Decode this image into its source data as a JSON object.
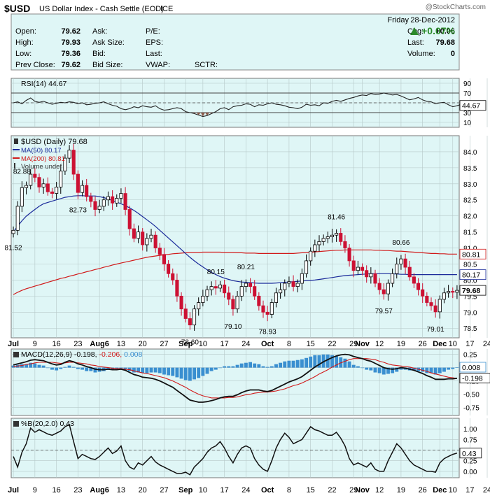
{
  "header": {
    "symbol": "$USD",
    "name": "US Dollar Index - Cash Settle (EOD)",
    "exchange": "ICE",
    "watermark": "@StockCharts.com",
    "date_day": "Friday",
    "date": "28-Dec-2012",
    "change_pct": "+0.07%",
    "rows": [
      {
        "l1": "Open:",
        "v1": "79.62",
        "l2": "Ask:",
        "l3": "P/E:",
        "r_label": "Chg:",
        "r_value": "+0.06"
      },
      {
        "l1": "High:",
        "v1": "79.93",
        "l2": "Ask Size:",
        "l3": "EPS:",
        "r_label": "Last:",
        "r_value": "79.68"
      },
      {
        "l1": "Low:",
        "v1": "79.36",
        "l2": "Bid:",
        "l3": "Last:",
        "r_label": "Volume:",
        "r_value": "0"
      },
      {
        "l1": "Prev Close:",
        "v1": "79.62",
        "l2": "Bid Size:",
        "l3": "VWAP:",
        "l4": "SCTR:"
      }
    ]
  },
  "chart_data": [
    {
      "type": "line",
      "name": "rsi",
      "title": "RSI(14) 44.67",
      "ylim": [
        0,
        100
      ],
      "yticks": [
        10,
        30,
        50,
        70,
        90
      ],
      "reference_lines": [
        30,
        70
      ],
      "last_value": "44.67",
      "values": [
        50,
        52,
        48,
        55,
        60,
        53,
        51,
        53,
        50,
        47,
        49,
        51,
        50,
        52,
        51,
        48,
        50,
        46,
        47,
        49,
        50,
        52,
        48,
        45,
        43,
        38,
        36,
        38,
        42,
        40,
        44,
        42,
        41,
        44,
        38,
        35,
        36,
        38,
        40,
        38,
        32,
        30,
        28,
        25,
        22,
        24,
        28,
        32,
        38,
        40,
        36,
        42,
        44,
        45,
        48,
        47,
        42,
        46,
        45,
        48,
        50,
        47,
        46,
        44,
        41,
        40,
        38,
        41,
        47,
        45,
        46,
        44,
        50,
        49,
        53,
        55,
        53,
        56,
        59,
        61,
        64,
        66,
        65,
        69,
        67,
        68,
        70,
        68,
        66,
        67,
        64,
        60,
        56,
        58,
        61,
        56,
        53,
        52,
        48,
        50,
        51,
        46,
        42,
        44,
        47,
        46,
        44,
        42,
        44,
        45
      ]
    },
    {
      "type": "candlestick",
      "name": "price",
      "title": "$USD (Daily) 79.68",
      "ylim": [
        78.2,
        84.5
      ],
      "yticks": [
        78.5,
        79.0,
        79.5,
        80.0,
        80.5,
        81.0,
        81.5,
        82.0,
        82.5,
        83.0,
        83.5,
        84.0
      ],
      "legend": [
        "$USD (Daily) 79.68",
        "MA(50) 80.17",
        "MA(200) 80.81",
        "Volume undef"
      ],
      "ma50_last": "80.17",
      "ma200_last": "80.81",
      "last_value": "79.68",
      "close": [
        81.55,
        82.3,
        82.88,
        82.95,
        83.3,
        83.2,
        82.9,
        83.0,
        82.75,
        82.7,
        82.9,
        83.4,
        83.8,
        84.05,
        83.3,
        82.73,
        82.95,
        82.6,
        82.45,
        82.2,
        82.3,
        82.5,
        82.6,
        82.4,
        82.55,
        82.7,
        82.2,
        81.6,
        81.3,
        81.5,
        81.1,
        81.3,
        81.4,
        81.0,
        80.8,
        80.5,
        80.2,
        80.0,
        79.5,
        79.1,
        78.8,
        78.6,
        79.1,
        79.3,
        79.5,
        79.7,
        79.8,
        79.75,
        79.85,
        79.6,
        79.4,
        79.1,
        79.5,
        79.8,
        79.9,
        79.8,
        79.5,
        79.2,
        79.0,
        78.93,
        79.3,
        79.6,
        79.7,
        79.9,
        79.95,
        79.8,
        79.9,
        80.2,
        80.6,
        80.9,
        81.1,
        81.2,
        81.3,
        81.35,
        81.4,
        81.46,
        81.2,
        81.0,
        80.6,
        80.3,
        80.4,
        80.3,
        80.1,
        80.2,
        79.9,
        79.7,
        79.57,
        79.9,
        80.2,
        80.5,
        80.66,
        80.4,
        80.1,
        79.9,
        79.7,
        79.5,
        79.3,
        79.2,
        79.01,
        79.4,
        79.6,
        79.65,
        79.62,
        79.68
      ],
      "ma50": [
        81.5,
        81.68,
        81.85,
        81.99,
        82.1,
        82.2,
        82.3,
        82.38,
        82.42,
        82.46,
        82.5,
        82.54,
        82.58,
        82.6,
        82.62,
        82.63,
        82.63,
        82.62,
        82.62,
        82.62,
        82.6,
        82.57,
        82.53,
        82.48,
        82.43,
        82.38,
        82.32,
        82.25,
        82.17,
        82.08,
        81.98,
        81.88,
        81.78,
        81.67,
        81.55,
        81.43,
        81.31,
        81.19,
        81.07,
        80.95,
        80.83,
        80.71,
        80.6,
        80.5,
        80.41,
        80.32,
        80.24,
        80.17,
        80.11,
        80.06,
        80.02,
        79.98,
        79.96,
        79.94,
        79.93,
        79.92,
        79.91,
        79.9,
        79.9,
        79.9,
        79.9,
        79.91,
        79.92,
        79.93,
        79.94,
        79.95,
        79.96,
        79.97,
        79.98,
        79.99,
        80.0,
        80.02,
        80.04,
        80.06,
        80.08,
        80.1,
        80.12,
        80.14,
        80.15,
        80.16,
        80.17,
        80.18,
        80.19,
        80.2,
        80.2,
        80.2,
        80.2,
        80.2,
        80.19,
        80.19,
        80.18,
        80.18,
        80.17,
        80.17,
        80.17,
        80.17,
        80.17,
        80.17,
        80.17,
        80.17,
        80.17,
        80.17,
        80.17,
        80.17
      ],
      "ma200": [
        79.55,
        79.62,
        79.68,
        79.73,
        79.77,
        79.81,
        79.85,
        79.89,
        79.93,
        79.97,
        80.01,
        80.05,
        80.08,
        80.12,
        80.15,
        80.19,
        80.22,
        80.26,
        80.29,
        80.33,
        80.36,
        80.4,
        80.43,
        80.47,
        80.5,
        80.53,
        80.56,
        80.59,
        80.62,
        80.65,
        80.68,
        80.71,
        80.73,
        80.75,
        80.77,
        80.79,
        80.8,
        80.82,
        80.83,
        80.84,
        80.85,
        80.86,
        80.86,
        80.86,
        80.87,
        80.87,
        80.87,
        80.87,
        80.87,
        80.86,
        80.86,
        80.86,
        80.85,
        80.85,
        80.84,
        80.84,
        80.84,
        80.83,
        80.83,
        80.83,
        80.83,
        80.83,
        80.83,
        80.83,
        80.83,
        80.83,
        80.84,
        80.85,
        80.86,
        80.87,
        80.88,
        80.89,
        80.9,
        80.91,
        80.92,
        80.93,
        80.93,
        80.94,
        80.94,
        80.94,
        80.94,
        80.94,
        80.94,
        80.94,
        80.93,
        80.93,
        80.92,
        80.92,
        80.91,
        80.9,
        80.9,
        80.89,
        80.88,
        80.87,
        80.86,
        80.85,
        80.84,
        80.83,
        80.83,
        80.82,
        80.82,
        80.81,
        80.81,
        80.81
      ],
      "annotations": [
        {
          "i": 0,
          "text": "81.52",
          "pos": "below"
        },
        {
          "i": 2,
          "text": "82.88",
          "pos": "above"
        },
        {
          "i": 15,
          "text": "82.73",
          "pos": "below"
        },
        {
          "i": 41,
          "text": "78.60",
          "pos": "below"
        },
        {
          "i": 47,
          "text": "80.15",
          "pos": "above"
        },
        {
          "i": 51,
          "text": "79.10",
          "pos": "below"
        },
        {
          "i": 54,
          "text": "80.21",
          "pos": "above"
        },
        {
          "i": 59,
          "text": "78.93",
          "pos": "below"
        },
        {
          "i": 75,
          "text": "81.46",
          "pos": "above"
        },
        {
          "i": 86,
          "text": "79.57",
          "pos": "below"
        },
        {
          "i": 90,
          "text": "80.66",
          "pos": "above"
        },
        {
          "i": 98,
          "text": "79.01",
          "pos": "below"
        }
      ]
    },
    {
      "type": "line",
      "name": "macd",
      "title": "MACD(12,26,9) -0.198, -0.206, 0.008",
      "title_parts": {
        "main": "MACD(12,26,9) -0.198,",
        "signal": "-0.206,",
        "hist": "0.008"
      },
      "ylim": [
        -0.9,
        0.35
      ],
      "yticks": [
        0.25,
        0.0,
        -0.25,
        -0.5,
        -0.75
      ],
      "ytick_labels": [
        "0.25",
        "0.00",
        "-0.25",
        "-0.50",
        "-0.75"
      ],
      "last_value": "0.008",
      "last_value2": "-0.198",
      "macd": [
        0.05,
        0.07,
        0.09,
        0.11,
        0.14,
        0.15,
        0.14,
        0.13,
        0.1,
        0.07,
        0.05,
        0.06,
        0.1,
        0.13,
        0.11,
        0.07,
        0.05,
        0.02,
        0.0,
        -0.03,
        -0.04,
        -0.04,
        -0.03,
        -0.04,
        -0.04,
        -0.03,
        -0.05,
        -0.09,
        -0.13,
        -0.15,
        -0.18,
        -0.19,
        -0.2,
        -0.22,
        -0.25,
        -0.29,
        -0.33,
        -0.37,
        -0.43,
        -0.49,
        -0.55,
        -0.61,
        -0.63,
        -0.65,
        -0.65,
        -0.64,
        -0.62,
        -0.6,
        -0.57,
        -0.55,
        -0.54,
        -0.54,
        -0.51,
        -0.47,
        -0.44,
        -0.42,
        -0.42,
        -0.42,
        -0.44,
        -0.45,
        -0.43,
        -0.39,
        -0.35,
        -0.31,
        -0.27,
        -0.24,
        -0.21,
        -0.17,
        -0.11,
        -0.05,
        0.01,
        0.06,
        0.11,
        0.15,
        0.19,
        0.22,
        0.24,
        0.25,
        0.24,
        0.21,
        0.19,
        0.17,
        0.14,
        0.12,
        0.08,
        0.04,
        0.0,
        -0.02,
        -0.03,
        -0.02,
        0.0,
        -0.01,
        -0.03,
        -0.05,
        -0.08,
        -0.11,
        -0.15,
        -0.18,
        -0.22,
        -0.22,
        -0.22,
        -0.21,
        -0.21,
        -0.2
      ],
      "signal": [
        0.02,
        0.03,
        0.04,
        0.06,
        0.07,
        0.09,
        0.1,
        0.1,
        0.1,
        0.1,
        0.09,
        0.08,
        0.09,
        0.1,
        0.1,
        0.09,
        0.08,
        0.07,
        0.05,
        0.04,
        0.02,
        0.01,
        0.0,
        -0.01,
        -0.02,
        -0.02,
        -0.03,
        -0.04,
        -0.06,
        -0.08,
        -0.1,
        -0.11,
        -0.13,
        -0.15,
        -0.17,
        -0.19,
        -0.22,
        -0.25,
        -0.29,
        -0.33,
        -0.37,
        -0.42,
        -0.46,
        -0.5,
        -0.53,
        -0.55,
        -0.57,
        -0.57,
        -0.57,
        -0.57,
        -0.56,
        -0.56,
        -0.55,
        -0.53,
        -0.51,
        -0.5,
        -0.48,
        -0.47,
        -0.46,
        -0.46,
        -0.45,
        -0.44,
        -0.42,
        -0.4,
        -0.37,
        -0.34,
        -0.32,
        -0.29,
        -0.25,
        -0.21,
        -0.17,
        -0.12,
        -0.08,
        -0.04,
        0.01,
        0.05,
        0.09,
        0.12,
        0.15,
        0.17,
        0.17,
        0.17,
        0.17,
        0.16,
        0.15,
        0.12,
        0.1,
        0.07,
        0.05,
        0.04,
        0.03,
        0.02,
        0.01,
        -0.01,
        -0.03,
        -0.05,
        -0.07,
        -0.1,
        -0.12,
        -0.14,
        -0.16,
        -0.18,
        -0.19,
        -0.206
      ]
    },
    {
      "type": "line",
      "name": "percent_b",
      "title": "%B(20,2.0) 0.43",
      "ylim": [
        -0.15,
        1.25
      ],
      "yticks": [
        1.0,
        0.75,
        0.5,
        0.25,
        0.0
      ],
      "ytick_labels": [
        "1.00",
        "0.75",
        "0.50",
        "0.25",
        "0.00"
      ],
      "reference_lines": [
        0.5
      ],
      "last_value": "0.43",
      "values": [
        0.35,
        0.1,
        0.45,
        0.65,
        1.02,
        0.92,
        0.98,
        0.93,
        0.88,
        0.85,
        0.9,
        0.95,
        1.05,
        1.1,
        0.7,
        0.3,
        0.4,
        0.35,
        0.3,
        0.28,
        0.35,
        0.45,
        0.55,
        0.42,
        0.48,
        0.6,
        0.25,
        0.1,
        0.05,
        0.2,
        0.15,
        0.25,
        0.35,
        0.22,
        0.15,
        0.1,
        0.05,
        0.0,
        -0.05,
        -0.05,
        -0.02,
        -0.08,
        0.1,
        0.2,
        0.3,
        0.45,
        0.55,
        0.6,
        0.7,
        0.55,
        0.35,
        0.2,
        0.4,
        0.55,
        0.6,
        0.55,
        0.3,
        0.15,
        0.05,
        0.0,
        0.25,
        0.55,
        0.75,
        0.9,
        0.8,
        0.65,
        0.7,
        0.75,
        0.9,
        1.05,
        0.98,
        0.95,
        0.9,
        0.85,
        0.85,
        0.92,
        0.78,
        0.6,
        0.3,
        0.15,
        0.2,
        0.15,
        0.1,
        0.2,
        0.05,
        0.0,
        0.0,
        0.25,
        0.45,
        0.65,
        0.55,
        0.4,
        0.25,
        0.15,
        0.1,
        0.05,
        0.0,
        0.0,
        -0.02,
        0.2,
        0.3,
        0.35,
        0.4,
        0.43
      ]
    }
  ],
  "x_axis": {
    "labels": [
      {
        "i": 0,
        "text": "Jul",
        "bold": true
      },
      {
        "i": 5,
        "text": "9"
      },
      {
        "i": 10,
        "text": "16"
      },
      {
        "i": 15,
        "text": "23"
      },
      {
        "i": 20,
        "text": "Aug6",
        "bold": true
      },
      {
        "i": 25,
        "text": "13"
      },
      {
        "i": 30,
        "text": "20"
      },
      {
        "i": 35,
        "text": "27"
      },
      {
        "i": 40,
        "text": "Sep",
        "bold": true
      },
      {
        "i": 44,
        "text": "10"
      },
      {
        "i": 49,
        "text": "17"
      },
      {
        "i": 54,
        "text": "24"
      },
      {
        "i": 59,
        "text": "Oct",
        "bold": true
      },
      {
        "i": 64,
        "text": "8"
      },
      {
        "i": 69,
        "text": "15"
      },
      {
        "i": 74,
        "text": "22"
      },
      {
        "i": 79,
        "text": "29"
      },
      {
        "i": 81,
        "text": "Nov",
        "bold": true
      },
      {
        "i": 85,
        "text": "12"
      },
      {
        "i": 90,
        "text": "19"
      },
      {
        "i": 95,
        "text": "26"
      },
      {
        "i": 99,
        "text": "Dec",
        "bold": true
      },
      {
        "i": 102,
        "text": "10"
      },
      {
        "i": 106,
        "text": "17"
      },
      {
        "i": 110,
        "text": "24"
      }
    ]
  },
  "colors": {
    "panel_bg": "#dff6f6",
    "header_bg": "#dff6f6",
    "grid": "#b6c8c8",
    "up_candle": "#ffffff",
    "down_candle": "#cc1133",
    "ma50": "#1a2a9a",
    "ma200": "#d11a1a",
    "macd_hist": "#3a8fd0",
    "rsi_fill": "#8a5a4a",
    "green": "#2a8a2a"
  }
}
